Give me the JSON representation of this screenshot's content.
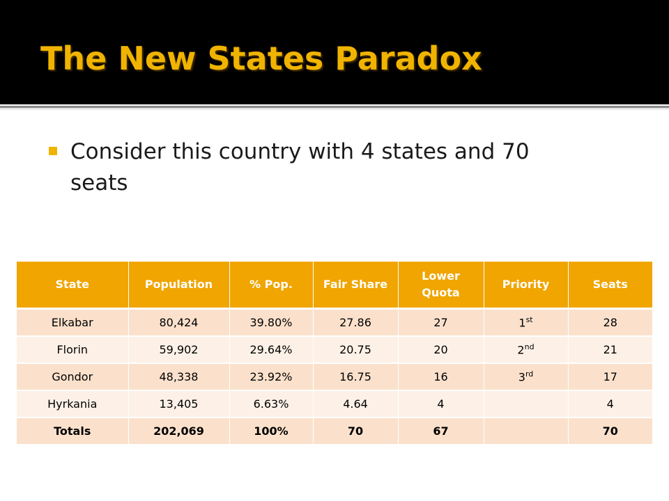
{
  "slide": {
    "title": "The New States Paradox",
    "bullet": "Consider this country with 4 states and 70 seats"
  },
  "colors": {
    "title_bar": "#000000",
    "title_text": "#f0b400",
    "header_fill": "#f0a500",
    "row_dark": "#fbe1cc",
    "row_light": "#fdf1e7"
  },
  "table": {
    "headers": [
      "State",
      "Population",
      "% Pop.",
      "Fair Share",
      "Lower Quota",
      "Priority",
      "Seats"
    ],
    "rows": [
      {
        "state": "Elkabar",
        "population": "80,424",
        "pct": "39.80%",
        "fair_share": "27.86",
        "lower_quota": "27",
        "priority_num": "1",
        "priority_suffix": "st",
        "seats": "28"
      },
      {
        "state": "Florin",
        "population": "59,902",
        "pct": "29.64%",
        "fair_share": "20.75",
        "lower_quota": "20",
        "priority_num": "2",
        "priority_suffix": "nd",
        "seats": "21"
      },
      {
        "state": "Gondor",
        "population": "48,338",
        "pct": "23.92%",
        "fair_share": "16.75",
        "lower_quota": "16",
        "priority_num": "3",
        "priority_suffix": "rd",
        "seats": "17"
      },
      {
        "state": "Hyrkania",
        "population": "13,405",
        "pct": "6.63%",
        "fair_share": "4.64",
        "lower_quota": "4",
        "priority_num": "",
        "priority_suffix": "",
        "seats": "4"
      }
    ],
    "totals": {
      "label": "Totals",
      "population": "202,069",
      "pct": "100%",
      "fair_share": "70",
      "lower_quota": "67",
      "priority": "",
      "seats": "70"
    }
  }
}
